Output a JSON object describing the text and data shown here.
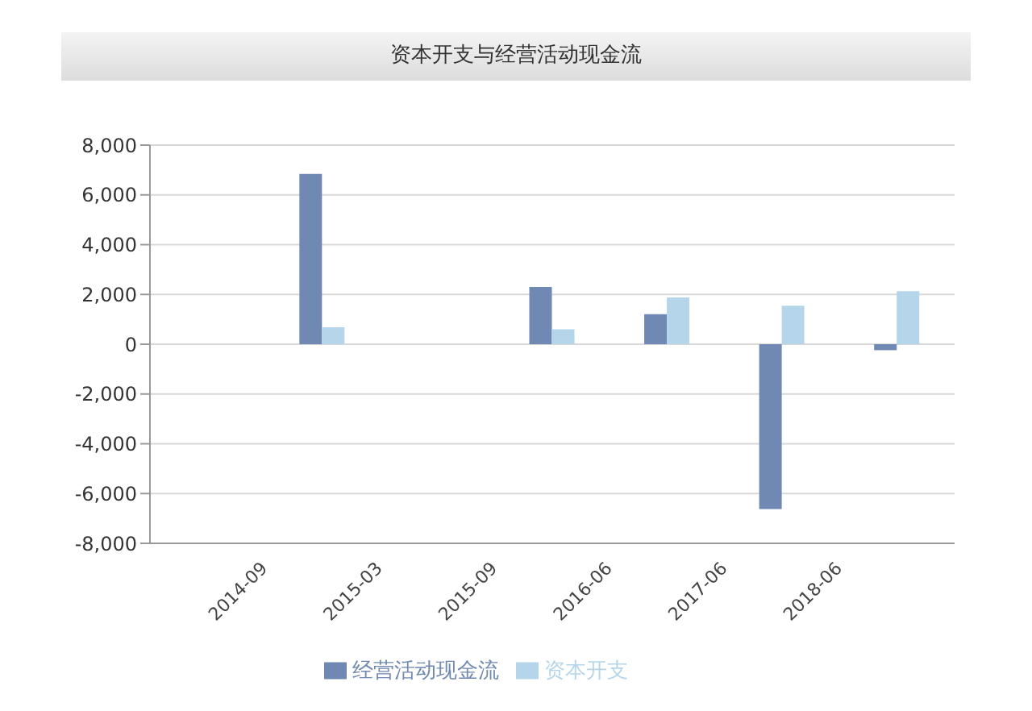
{
  "chart_data": {
    "type": "bar",
    "title": "资本开支与经营活动现金流",
    "categories": [
      "2014-09",
      "2015-03",
      "2015-09",
      "2016-06",
      "2017-06",
      "2018-06",
      null
    ],
    "series": [
      {
        "name": "经营活动现金流",
        "color": "#7089b4",
        "values": [
          null,
          6840,
          null,
          2300,
          1210,
          -6620,
          -240
        ]
      },
      {
        "name": "资本开支",
        "color": "#b5d6ea",
        "values": [
          null,
          680,
          null,
          600,
          1880,
          1550,
          2130
        ]
      }
    ],
    "ylim": [
      -8000,
      8000
    ],
    "yticks": [
      {
        "value": -8000,
        "label": "-8,000"
      },
      {
        "value": -6000,
        "label": "-6,000"
      },
      {
        "value": -4000,
        "label": "-4,000"
      },
      {
        "value": -2000,
        "label": "-2,000"
      },
      0,
      {
        "value": 2000,
        "label": "2,000"
      },
      {
        "value": 4000,
        "label": "4,000"
      },
      {
        "value": 6000,
        "label": "6,000"
      },
      {
        "value": 8000,
        "label": "8,000"
      }
    ],
    "grid": "y",
    "legend": "bottom"
  }
}
